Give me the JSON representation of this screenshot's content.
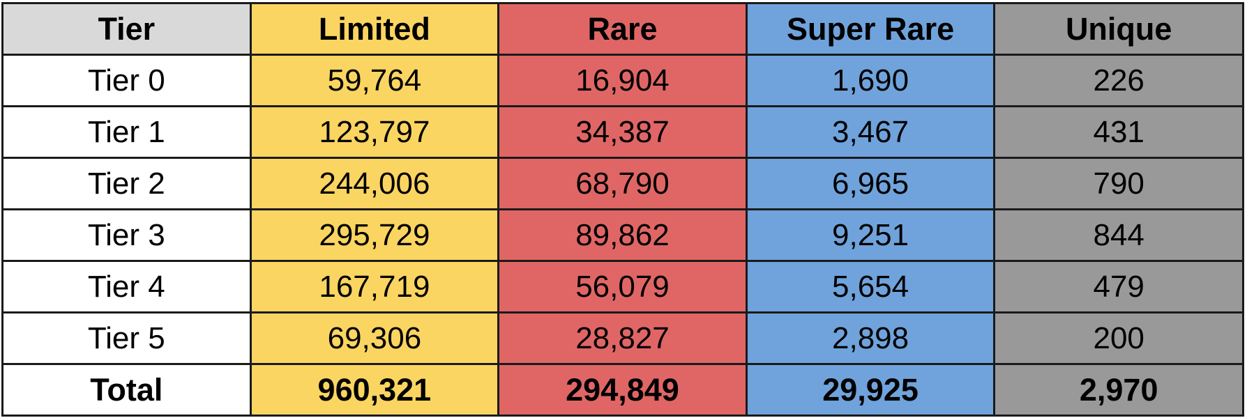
{
  "colors": {
    "tier_header": "#d9d9d9",
    "limited": "#fbd561",
    "rare": "#e06666",
    "super_rare": "#70a3db",
    "unique": "#999999",
    "border": "#1a1a1a"
  },
  "table": {
    "headers": [
      "Tier",
      "Limited",
      "Rare",
      "Super Rare",
      "Unique"
    ],
    "rows": [
      [
        "Tier 0",
        "59,764",
        "16,904",
        "1,690",
        "226"
      ],
      [
        "Tier 1",
        "123,797",
        "34,387",
        "3,467",
        "431"
      ],
      [
        "Tier 2",
        "244,006",
        "68,790",
        "6,965",
        "790"
      ],
      [
        "Tier 3",
        "295,729",
        "89,862",
        "9,251",
        "844"
      ],
      [
        "Tier 4",
        "167,719",
        "56,079",
        "5,654",
        "479"
      ],
      [
        "Tier 5",
        "69,306",
        "28,827",
        "2,898",
        "200"
      ]
    ],
    "total": [
      "Total",
      "960,321",
      "294,849",
      "29,925",
      "2,970"
    ]
  }
}
